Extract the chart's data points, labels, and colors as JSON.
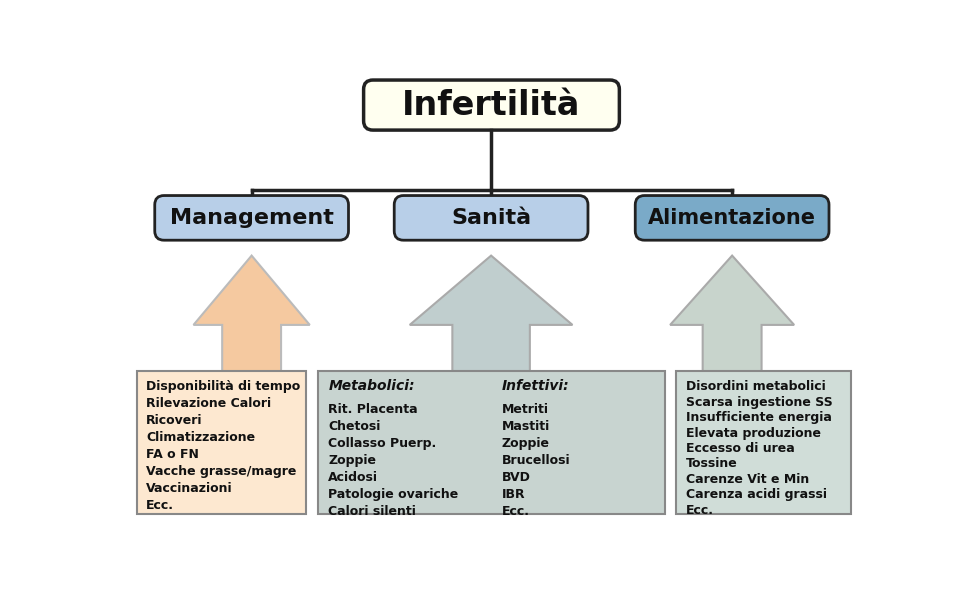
{
  "title": "Infertilità",
  "title_box_color": "#fffff0",
  "title_border_color": "#222222",
  "level2_nodes": [
    "Management",
    "Sanità",
    "Alimentazione"
  ],
  "level2_colors": [
    "#b8cfe8",
    "#b8cfe8",
    "#7aaac8"
  ],
  "level2_border_color": "#222222",
  "arrow_colors": [
    "#f5c9a0",
    "#c0cece",
    "#c8d4cc"
  ],
  "box_colors": [
    "#fde8d0",
    "#c8d4d0",
    "#d0ddd8"
  ],
  "box_border_color": "#888888",
  "metabolici_header": "Metabolici:",
  "metabolici_lines": [
    "Rit. Placenta",
    "Chetosi",
    "Collasso Puerp.",
    "Zoppie",
    "Acidosi",
    "Patologie ovariche",
    "Calori silenti"
  ],
  "infettivi_header": "Infettivi:",
  "infettivi_lines": [
    "Metriti",
    "Mastiti",
    "Zoppie",
    "Brucellosi",
    "BVD",
    "IBR",
    "Ecc."
  ],
  "mgmt_lines": [
    "Disponibilità di tempo",
    "Rilevazione Calori",
    "Ricoveri",
    "Climatizzazione",
    "FA o FN",
    "Vacche grasse/magre",
    "Vaccinazioni",
    "Ecc."
  ],
  "alim_lines": [
    "Disordini metabolici",
    "Scarsa ingestione SS",
    "Insufficiente energia",
    "Elevata produzione",
    "Eccesso di urea",
    "Tossine",
    "Carenze Vit e Min",
    "Carenza acidi grassi",
    "Ecc."
  ],
  "background_color": "#ffffff",
  "line_color": "#222222"
}
